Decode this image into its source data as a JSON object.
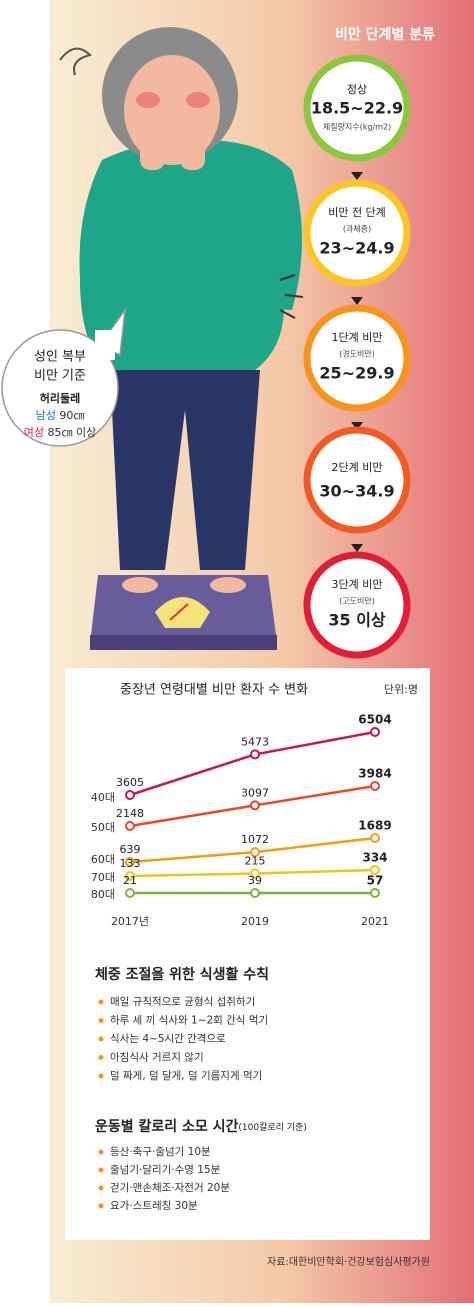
{
  "title": "비만 단계별 분류",
  "stages": [
    {
      "name": "정상",
      "range": "18.5~22.9",
      "note": "체질량지수(kg/m2)"
    },
    {
      "name": "비만 전 단계",
      "note": "(과체중)",
      "range": "23~24.9"
    },
    {
      "name": "1단계 비만",
      "note": "(경도비만)",
      "range": "25~29.9"
    },
    {
      "name": "2단계 비만",
      "range": "30~34.9"
    },
    {
      "name": "3단계 비만",
      "note": "(고도비만)",
      "range": "35 이상"
    }
  ],
  "bubble": {
    "title1": "성인 복부",
    "title2": "비만 기준",
    "label": "허리둘레",
    "male": "남성",
    "male_value": "90㎝",
    "female": "여성",
    "female_value": "85㎝ 이상"
  },
  "chart_data": {
    "type": "line",
    "title": "중장년 연령대별 비만 환자 수 변화",
    "unit": "단위:명",
    "categories": [
      "2017년",
      "2019",
      "2021"
    ],
    "series": [
      {
        "name": "40대",
        "color": "#c2185b",
        "values": [
          3605,
          5473,
          6504
        ]
      },
      {
        "name": "50대",
        "color": "#e8472a",
        "values": [
          2148,
          3097,
          3984
        ]
      },
      {
        "name": "60대",
        "color": "#f39c12",
        "values": [
          639,
          1072,
          1689
        ]
      },
      {
        "name": "70대",
        "color": "#f2c31b",
        "values": [
          133,
          215,
          334
        ]
      },
      {
        "name": "80대",
        "color": "#7cb342",
        "values": [
          21,
          39,
          57
        ]
      }
    ]
  },
  "diet": {
    "title": "체중 조절을 위한 식생활 수칙",
    "items": [
      "매일 규칙적으로 균형식 섭취하기",
      "하루 세 끼 식사와 1~2회 간식 먹기",
      "식사는 4~5시간 간격으로",
      "아침식사 거르지 않기",
      "덜 짜게, 덜 달게, 덜 기름지게 먹기"
    ]
  },
  "exercise": {
    "title": "운동별 칼로리 소모 시간",
    "subtitle": "(100칼로리 기준)",
    "items": [
      "등산·축구·줄넘기 10분",
      "줄넘기·달리기·수영 15분",
      "걷기·맨손체조·자전거 20분",
      "요가·스트레칭 30분"
    ]
  },
  "source": "자료:대한비만학회·건강보험심사평가원"
}
